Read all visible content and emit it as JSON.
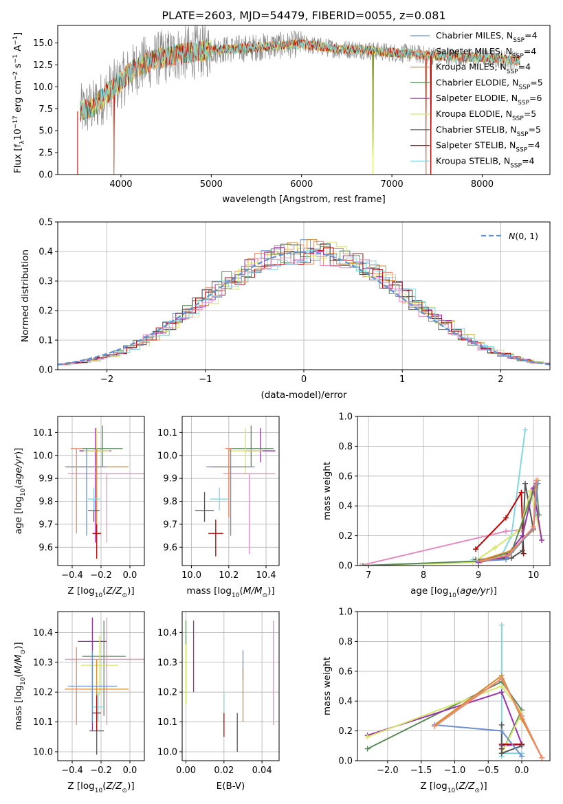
{
  "figure": {
    "title": "PLATE=2603, MJD=54479, FIBERID=0055, z=0.081"
  },
  "colors": {
    "chabrier_miles": "#6a8fd0",
    "salpeter_miles": "#f08a6a",
    "kroupa_miles": "#d58a2a",
    "chabrier_elodie": "#5a8a5a",
    "salpeter_elodie": "#9b2fae",
    "kroupa_elodie": "#d6e86a",
    "chabrier_stelib": "#555555",
    "salpeter_stelib": "#c00000",
    "kroupa_stelib": "#7fd8e0",
    "normal_curve": "#5b8fd6",
    "pink": "#e88ac0",
    "grid": "#b0b0b0"
  },
  "chart_data": [
    {
      "id": "spectrum",
      "type": "line",
      "title": "PLATE=2603, MJD=54479, FIBERID=0055, z=0.081",
      "xlabel": "wavelength [Angstrom, rest frame]",
      "ylabel": "Flux [f_λ 10^-17 erg cm^-2 s^-1 A^-1]",
      "xlim": [
        3300,
        8750
      ],
      "ylim": [
        0,
        17
      ],
      "xticks": [
        "4000",
        "5000",
        "6000",
        "7000",
        "8000"
      ],
      "yticks": [
        "0.0",
        "2.5",
        "5.0",
        "7.5",
        "10.0",
        "12.5",
        "15.0"
      ],
      "grid": false,
      "legend_position": "top-right",
      "legend": [
        "Chabrier MILES, N_SSP=4",
        "Salpeter MILES, N_SSP=4",
        "Kroupa MILES, N_SSP=4",
        "Chabrier ELODIE, N_SSP=5",
        "Salpeter ELODIE, N_SSP=6",
        "Kroupa ELODIE, N_SSP=5",
        "Chabrier STELIB, N_SSP=5",
        "Salpeter STELIB, N_SSP=4",
        "Kroupa STELIB, N_SSP=4"
      ],
      "model_continuum": {
        "x": [
          3550,
          3700,
          3800,
          3900,
          4000,
          4100,
          4200,
          4400,
          4600,
          4800,
          5000,
          5200,
          5400,
          5600,
          5800,
          6000,
          6200,
          6400,
          6600,
          6800,
          7000,
          7200,
          7400,
          7600,
          7800,
          8000,
          8200,
          8400
        ],
        "y": [
          7.2,
          7.8,
          8.8,
          9.8,
          10.6,
          11.6,
          12.4,
          13.2,
          13.7,
          14.0,
          14.2,
          14.3,
          14.4,
          14.6,
          14.7,
          14.9,
          14.6,
          14.3,
          14.3,
          14.1,
          13.9,
          13.8,
          13.6,
          13.5,
          13.4,
          13.3,
          13.2,
          13.0
        ]
      },
      "dropouts": [
        3520,
        3920,
        6790,
        7380,
        7430
      ]
    },
    {
      "id": "residual-hist",
      "type": "line",
      "xlabel": "(data-model)/error",
      "ylabel": "Normed distribution",
      "xlim": [
        -2.5,
        2.5
      ],
      "ylim": [
        0,
        0.5
      ],
      "xticks": [
        "−2",
        "−1",
        "0",
        "1",
        "2"
      ],
      "yticks": [
        "0.0",
        "0.1",
        "0.2",
        "0.3",
        "0.4",
        "0.5"
      ],
      "grid": true,
      "legend_position": "top-right",
      "legend": [
        "N(0,1)"
      ],
      "normal_curve": {
        "mean": 0,
        "sigma": 1
      },
      "bin_width": 0.1,
      "bin_start": -2.5,
      "series_template": [
        0.018,
        0.022,
        0.026,
        0.032,
        0.04,
        0.05,
        0.061,
        0.074,
        0.09,
        0.108,
        0.128,
        0.15,
        0.173,
        0.198,
        0.224,
        0.25,
        0.275,
        0.3,
        0.322,
        0.342,
        0.36,
        0.374,
        0.385,
        0.393,
        0.398,
        0.399,
        0.398,
        0.393,
        0.385,
        0.374,
        0.36,
        0.342,
        0.322,
        0.3,
        0.275,
        0.25,
        0.224,
        0.198,
        0.173,
        0.15,
        0.128,
        0.108,
        0.09,
        0.074,
        0.061,
        0.05,
        0.04,
        0.032,
        0.026,
        0.022
      ]
    },
    {
      "id": "age-vs-z",
      "type": "scatter",
      "xlabel": "Z [log10(Z/Z⊙)]",
      "ylabel": "age  [log10(age/yr)]",
      "xlim": [
        -0.5,
        0.1
      ],
      "ylim": [
        9.52,
        10.17
      ],
      "xticks": [
        "−0.4",
        "−0.2",
        "0.0"
      ],
      "xtick_values": [
        -0.4,
        -0.2,
        0.0
      ],
      "yticks": [
        "9.6",
        "9.7",
        "9.8",
        "9.9",
        "10.0",
        "10.1"
      ],
      "ytick_values": [
        9.6,
        9.7,
        9.8,
        9.9,
        10.0,
        10.1
      ],
      "grid": true,
      "points": [
        {
          "color": "salpeter_elodie",
          "x": -0.24,
          "y": 10.02,
          "xerr": 0.11,
          "yerr_lo": 0.4,
          "yerr_hi": 0.1
        },
        {
          "color": "chabrier_elodie",
          "x": -0.19,
          "y": 10.03,
          "xerr": 0.14,
          "yerr_lo": 0.08,
          "yerr_hi": 0.1
        },
        {
          "color": "kroupa_elodie",
          "x": -0.23,
          "y": 10.02,
          "xerr": 0.09,
          "yerr_lo": 0.1,
          "yerr_hi": 0.1
        },
        {
          "color": "pink",
          "x": -0.16,
          "y": 9.92,
          "xerr": 0.27,
          "yerr_lo": 0.3,
          "yerr_hi": 0.0
        },
        {
          "color": "kroupa_miles",
          "x": -0.23,
          "y": 9.95,
          "xerr": 0.22,
          "yerr_lo": 0.3,
          "yerr_hi": 0.08
        },
        {
          "color": "chabrier_miles",
          "x": -0.3,
          "y": 9.95,
          "xerr": 0.14,
          "yerr_lo": 0.3,
          "yerr_hi": 0.08
        },
        {
          "color": "salpeter_miles",
          "x": -0.37,
          "y": 10.03,
          "xerr": 0.04,
          "yerr_lo": 0.37,
          "yerr_hi": 0.0
        },
        {
          "color": "chabrier_stelib",
          "x": -0.25,
          "y": 9.76,
          "xerr": 0.04,
          "yerr_lo": 0.05,
          "yerr_hi": 0.05
        },
        {
          "color": "kroupa_stelib",
          "x": -0.25,
          "y": 9.81,
          "xerr": 0.04,
          "yerr_lo": 0.05,
          "yerr_hi": 0.05
        },
        {
          "color": "salpeter_stelib",
          "x": -0.23,
          "y": 9.66,
          "xerr": 0.03,
          "yerr_lo": 0.11,
          "yerr_hi": 0.04
        }
      ]
    },
    {
      "id": "age-vs-mass",
      "type": "scatter",
      "xlabel": "mass [log10(M/M⊙)]",
      "ylabel": "",
      "xlim": [
        9.95,
        10.47
      ],
      "ylim": [
        9.52,
        10.17
      ],
      "xticks": [
        "10.0",
        "10.2",
        "10.4"
      ],
      "xtick_values": [
        10.0,
        10.2,
        10.4
      ],
      "yticks": [
        "9.6",
        "9.7",
        "9.8",
        "9.9",
        "10.0",
        "10.1"
      ],
      "ytick_values": [
        9.6,
        9.7,
        9.8,
        9.9,
        10.0,
        10.1
      ],
      "grid": true,
      "points": [
        {
          "color": "salpeter_elodie",
          "x": 10.37,
          "y": 10.02,
          "xerr": 0.08,
          "yerr_lo": 0.05,
          "yerr_hi": 0.1
        },
        {
          "color": "chabrier_elodie",
          "x": 10.32,
          "y": 10.03,
          "xerr": 0.12,
          "yerr_lo": 0.08,
          "yerr_hi": 0.1
        },
        {
          "color": "kroupa_elodie",
          "x": 10.29,
          "y": 10.02,
          "xerr": 0.09,
          "yerr_lo": 0.1,
          "yerr_hi": 0.1
        },
        {
          "color": "pink",
          "x": 10.31,
          "y": 9.92,
          "xerr": 0.14,
          "yerr_lo": 0.35,
          "yerr_hi": 0.0
        },
        {
          "color": "kroupa_miles",
          "x": 10.21,
          "y": 9.95,
          "xerr": 0.1,
          "yerr_lo": 0.3,
          "yerr_hi": 0.08
        },
        {
          "color": "chabrier_miles",
          "x": 10.21,
          "y": 9.95,
          "xerr": 0.13,
          "yerr_lo": 0.3,
          "yerr_hi": 0.08
        },
        {
          "color": "salpeter_miles",
          "x": 10.2,
          "y": 10.03,
          "xerr": 0.02,
          "yerr_lo": 0.3,
          "yerr_hi": 0.0
        },
        {
          "color": "chabrier_stelib",
          "x": 10.07,
          "y": 9.76,
          "xerr": 0.05,
          "yerr_lo": 0.05,
          "yerr_hi": 0.08
        },
        {
          "color": "kroupa_stelib",
          "x": 10.15,
          "y": 9.81,
          "xerr": 0.05,
          "yerr_lo": 0.05,
          "yerr_hi": 0.05
        },
        {
          "color": "salpeter_stelib",
          "x": 10.13,
          "y": 9.66,
          "xerr": 0.04,
          "yerr_lo": 0.1,
          "yerr_hi": 0.06
        }
      ]
    },
    {
      "id": "weight-vs-age",
      "type": "line",
      "xlabel": "age  [log10(age/yr)]",
      "ylabel": "mass weight",
      "xlim": [
        6.8,
        10.3
      ],
      "ylim": [
        0,
        1.0
      ],
      "xticks": [
        "7",
        "8",
        "9",
        "10"
      ],
      "xtick_values": [
        7,
        8,
        9,
        10
      ],
      "yticks": [
        "0.0",
        "0.2",
        "0.4",
        "0.6",
        "0.8",
        "1.0"
      ],
      "ytick_values": [
        0,
        0.2,
        0.4,
        0.6,
        0.8,
        1.0
      ],
      "grid": true,
      "series": [
        {
          "color": "pink",
          "x": [
            6.85,
            9.5,
            9.78,
            9.95,
            10.05
          ],
          "y": [
            0.0,
            0.23,
            0.24,
            0.5,
            0.56
          ]
        },
        {
          "color": "kroupa_stelib",
          "x": [
            8.9,
            9.4,
            9.6,
            9.85
          ],
          "y": [
            0.04,
            0.05,
            0.2,
            0.91
          ]
        },
        {
          "color": "salpeter_stelib",
          "x": [
            8.95,
            9.5,
            9.78,
            9.82
          ],
          "y": [
            0.11,
            0.32,
            0.49,
            0.08
          ]
        },
        {
          "color": "chabrier_stelib",
          "x": [
            8.95,
            9.6,
            9.8,
            9.85,
            10.0
          ],
          "y": [
            0.04,
            0.05,
            0.1,
            0.55,
            0.24
          ]
        },
        {
          "color": "kroupa_elodie",
          "x": [
            6.9,
            8.9,
            9.3,
            9.75,
            9.95,
            10.15
          ],
          "y": [
            0.0,
            0.02,
            0.12,
            0.24,
            0.5,
            0.17
          ]
        },
        {
          "color": "salpeter_elodie",
          "x": [
            9.0,
            9.5,
            9.8,
            10.0,
            10.15
          ],
          "y": [
            0.02,
            0.06,
            0.2,
            0.52,
            0.17
          ]
        },
        {
          "color": "chabrier_elodie",
          "x": [
            6.9,
            9.0,
            9.6,
            10.05,
            10.1
          ],
          "y": [
            0.0,
            0.03,
            0.09,
            0.55,
            0.34
          ]
        },
        {
          "color": "kroupa_miles",
          "x": [
            9.0,
            9.6,
            10.0,
            10.08
          ],
          "y": [
            0.03,
            0.1,
            0.24,
            0.57
          ]
        },
        {
          "color": "chabrier_miles",
          "x": [
            9.0,
            9.5,
            10.0,
            10.08
          ],
          "y": [
            0.03,
            0.04,
            0.25,
            0.55
          ]
        },
        {
          "color": "salpeter_miles",
          "x": [
            9.05,
            9.55,
            10.0,
            10.05
          ],
          "y": [
            0.03,
            0.07,
            0.26,
            0.57
          ]
        }
      ]
    },
    {
      "id": "mass-vs-z",
      "type": "scatter",
      "xlabel": "Z [log10(Z/Z⊙)]",
      "ylabel": "mass [log10(M/M⊙)]",
      "xlim": [
        -0.5,
        0.1
      ],
      "ylim": [
        9.97,
        10.47
      ],
      "xticks": [
        "−0.4",
        "−0.2",
        "0.0"
      ],
      "xtick_values": [
        -0.4,
        -0.2,
        0.0
      ],
      "yticks": [
        "10.0",
        "10.1",
        "10.2",
        "10.3",
        "10.4"
      ],
      "ytick_values": [
        10.0,
        10.1,
        10.2,
        10.3,
        10.4
      ],
      "grid": true,
      "points": [
        {
          "color": "salpeter_elodie",
          "x": -0.26,
          "y": 10.37,
          "xerr": 0.1,
          "yerr_lo": 0.3,
          "yerr_hi": 0.08
        },
        {
          "color": "chabrier_elodie",
          "x": -0.18,
          "y": 10.32,
          "xerr": 0.15,
          "yerr_lo": 0.2,
          "yerr_hi": 0.12
        },
        {
          "color": "kroupa_elodie",
          "x": -0.21,
          "y": 10.29,
          "xerr": 0.13,
          "yerr_lo": 0.1,
          "yerr_hi": 0.1
        },
        {
          "color": "pink",
          "x": -0.16,
          "y": 10.31,
          "xerr": 0.29,
          "yerr_lo": 0.22,
          "yerr_hi": 0.14
        },
        {
          "color": "kroupa_miles",
          "x": -0.23,
          "y": 10.21,
          "xerr": 0.22,
          "yerr_lo": 0.12,
          "yerr_hi": 0.1
        },
        {
          "color": "chabrier_miles",
          "x": -0.26,
          "y": 10.22,
          "xerr": 0.17,
          "yerr_lo": 0.12,
          "yerr_hi": 0.12
        },
        {
          "color": "salpeter_miles",
          "x": -0.37,
          "y": 10.21,
          "xerr": 0.04,
          "yerr_lo": 0.12,
          "yerr_hi": 0.14
        },
        {
          "color": "chabrier_stelib",
          "x": -0.23,
          "y": 10.07,
          "xerr": 0.05,
          "yerr_lo": 0.08,
          "yerr_hi": 0.06
        },
        {
          "color": "kroupa_stelib",
          "x": -0.22,
          "y": 10.15,
          "xerr": 0.04,
          "yerr_lo": 0.05,
          "yerr_hi": 0.05
        },
        {
          "color": "salpeter_stelib",
          "x": -0.23,
          "y": 10.13,
          "xerr": 0.03,
          "yerr_lo": 0.06,
          "yerr_hi": 0.06
        }
      ]
    },
    {
      "id": "mass-vs-ebv",
      "type": "scatter",
      "xlabel": "E(B-V)",
      "ylabel": "",
      "xlim": [
        -0.002,
        0.049
      ],
      "ylim": [
        9.97,
        10.47
      ],
      "xticks": [
        "0.00",
        "0.02",
        "0.04"
      ],
      "xtick_values": [
        0.0,
        0.02,
        0.04
      ],
      "yticks": [
        "10.0",
        "10.1",
        "10.2",
        "10.3",
        "10.4"
      ],
      "ytick_values": [
        10.0,
        10.1,
        10.2,
        10.3,
        10.4
      ],
      "grid": true,
      "points": [
        {
          "color": "chabrier_elodie",
          "x": 0.0,
          "y": 10.36,
          "xerr": 0,
          "yerr_lo": 0.2,
          "yerr_hi": 0.08
        },
        {
          "color": "kroupa_elodie",
          "x": 0.0,
          "y": 10.3,
          "xerr": 0,
          "yerr_lo": 0.14,
          "yerr_hi": 0.06
        },
        {
          "color": "salpeter_elodie",
          "x": 0.004,
          "y": 10.36,
          "xerr": 0,
          "yerr_lo": 0.16,
          "yerr_hi": 0.08
        },
        {
          "color": "kroupa_stelib",
          "x": 0.02,
          "y": 10.15,
          "xerr": 0,
          "yerr_lo": 0.06,
          "yerr_hi": 0.05
        },
        {
          "color": "salpeter_stelib",
          "x": 0.02,
          "y": 10.1,
          "xerr": 0,
          "yerr_lo": 0.05,
          "yerr_hi": 0.03
        },
        {
          "color": "chabrier_stelib",
          "x": 0.027,
          "y": 10.07,
          "xerr": 0,
          "yerr_lo": 0.07,
          "yerr_hi": 0.06
        },
        {
          "color": "chabrier_miles",
          "x": 0.03,
          "y": 10.3,
          "xerr": 0,
          "yerr_lo": 0.06,
          "yerr_hi": 0.04
        },
        {
          "color": "kroupa_miles",
          "x": 0.03,
          "y": 10.2,
          "xerr": 0,
          "yerr_lo": 0.1,
          "yerr_hi": 0.08
        },
        {
          "color": "pink",
          "x": 0.046,
          "y": 10.3,
          "xerr": 0,
          "yerr_lo": 0.21,
          "yerr_hi": 0.14
        }
      ]
    },
    {
      "id": "weight-vs-z",
      "type": "line",
      "xlabel": "Z [log10(Z/Z⊙)]",
      "ylabel": "mass weight",
      "xlim": [
        -2.45,
        0.42
      ],
      "ylim": [
        0,
        1.0
      ],
      "xticks": [
        "−2.0",
        "−1.5",
        "−1.0",
        "−0.5",
        "0.0"
      ],
      "xtick_values": [
        -2.0,
        -1.5,
        -1.0,
        -0.5,
        0.0
      ],
      "yticks": [
        "0.0",
        "0.2",
        "0.4",
        "0.6",
        "0.8",
        "1.0"
      ],
      "ytick_values": [
        0,
        0.2,
        0.4,
        0.6,
        0.8,
        1.0
      ],
      "grid": true,
      "series": [
        {
          "color": "kroupa_stelib",
          "x": [
            -0.3,
            -0.3,
            -0.3,
            0.0
          ],
          "y": [
            0.03,
            0.91,
            0.05,
            0.05
          ]
        },
        {
          "color": "chabrier_elodie",
          "x": [
            -2.3,
            -0.3,
            0.0,
            -0.3
          ],
          "y": [
            0.08,
            0.53,
            0.34,
            0.05
          ]
        },
        {
          "color": "salpeter_elodie",
          "x": [
            -2.3,
            -0.3,
            0.0,
            -0.3
          ],
          "y": [
            0.17,
            0.46,
            0.11,
            0.1
          ]
        },
        {
          "color": "kroupa_elodie",
          "x": [
            -2.3,
            -0.3,
            0.0,
            -0.3
          ],
          "y": [
            0.16,
            0.5,
            0.32,
            0.05
          ]
        },
        {
          "color": "salpeter_stelib",
          "x": [
            -0.3,
            -0.3,
            0.0
          ],
          "y": [
            0.08,
            0.11,
            0.11
          ]
        },
        {
          "color": "chabrier_stelib",
          "x": [
            -0.3,
            -0.3,
            0.0
          ],
          "y": [
            0.24,
            0.05,
            0.1
          ]
        },
        {
          "color": "pink",
          "x": [
            -1.3,
            -0.3,
            0.0,
            0.3
          ],
          "y": [
            0.24,
            0.55,
            0.3,
            0.02
          ]
        },
        {
          "color": "kroupa_miles",
          "x": [
            -1.3,
            -0.3,
            0.0,
            0.3
          ],
          "y": [
            0.24,
            0.57,
            0.28,
            0.02
          ]
        },
        {
          "color": "chabrier_miles",
          "x": [
            -1.3,
            -0.3,
            0.0
          ],
          "y": [
            0.24,
            0.2,
            0.03
          ]
        },
        {
          "color": "salpeter_miles",
          "x": [
            -1.3,
            -0.3,
            0.0,
            0.3
          ],
          "y": [
            0.23,
            0.55,
            0.3,
            0.02
          ]
        }
      ]
    }
  ]
}
